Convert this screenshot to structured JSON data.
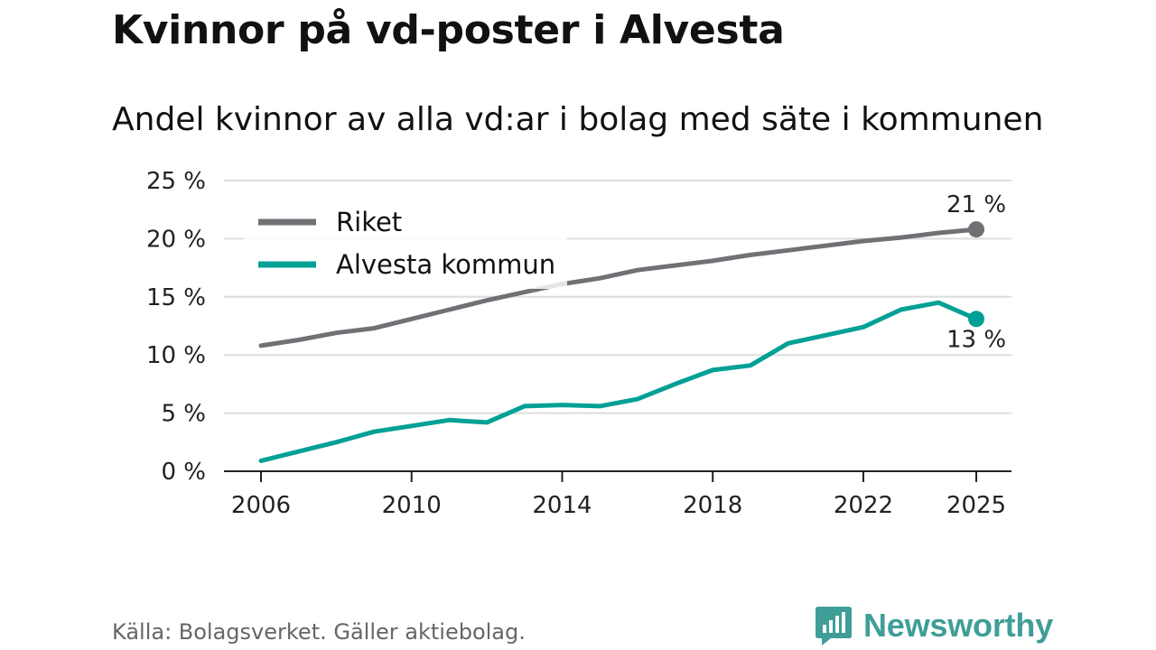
{
  "title": "Kvinnor på vd-poster i Alvesta",
  "subtitle": "Andel kvinnor av alla vd:ar i bolag med säte i kommunen",
  "source": "Källa: Bolagsverket. Gäller aktiebolag.",
  "brand": "Newsworthy",
  "colors": {
    "riket": "#707075",
    "alvesta": "#00a096",
    "grid": "#dddddd",
    "axis": "#222222",
    "brand": "#3f9e98"
  },
  "chart_data": {
    "type": "line",
    "x": [
      2006,
      2007,
      2008,
      2009,
      2010,
      2011,
      2012,
      2013,
      2014,
      2015,
      2016,
      2017,
      2018,
      2019,
      2020,
      2021,
      2022,
      2023,
      2024,
      2025
    ],
    "series": [
      {
        "name": "Riket",
        "color": "#707075",
        "values": [
          10.8,
          11.3,
          11.9,
          12.3,
          13.1,
          13.9,
          14.7,
          15.4,
          16.1,
          16.6,
          17.3,
          17.7,
          18.1,
          18.6,
          19.0,
          19.4,
          19.8,
          20.1,
          20.5,
          20.8
        ],
        "end_label": "21 %",
        "end_label_position": "above"
      },
      {
        "name": "Alvesta kommun",
        "color": "#00a096",
        "values": [
          0.9,
          1.7,
          2.5,
          3.4,
          3.9,
          4.4,
          4.2,
          5.6,
          5.7,
          5.6,
          6.2,
          7.5,
          8.7,
          9.1,
          11.0,
          11.7,
          12.4,
          13.9,
          14.5,
          13.1
        ],
        "end_label": "13 %",
        "end_label_position": "below"
      }
    ],
    "xlim": [
      2006,
      2025
    ],
    "ylim": [
      0,
      25
    ],
    "yticks": [
      0,
      5,
      10,
      15,
      20,
      25
    ],
    "ytick_labels": [
      "0 %",
      "5 %",
      "10 %",
      "15 %",
      "20 %",
      "25 %"
    ],
    "xticks": [
      2006,
      2010,
      2014,
      2018,
      2022,
      2025
    ],
    "xtick_labels": [
      "2006",
      "2010",
      "2014",
      "2018",
      "2022",
      "2025"
    ],
    "grid": true,
    "legend": [
      "Riket",
      "Alvesta kommun"
    ],
    "legend_position": "top-left"
  }
}
